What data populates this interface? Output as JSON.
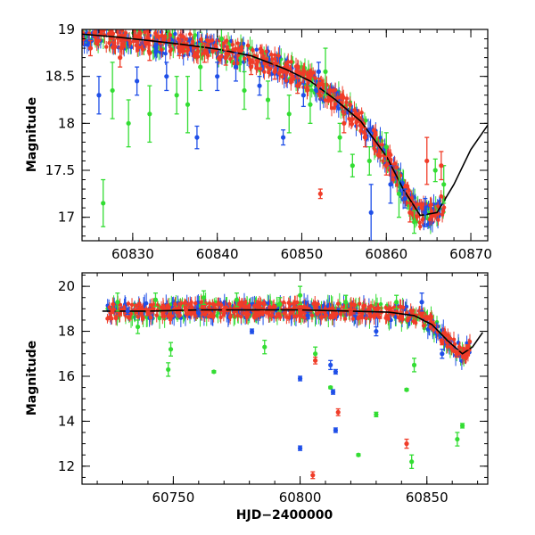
{
  "chart_data": [
    {
      "type": "scatter",
      "panel": "top",
      "title": "",
      "xlabel": "",
      "ylabel": "Magnitude",
      "xlim": [
        60824,
        60872
      ],
      "ylim": [
        19.0,
        16.75
      ],
      "y_inverted": true,
      "grid": false,
      "xticks": [
        60830,
        60840,
        60850,
        60860,
        60870
      ],
      "xtick_labels": [
        "60830",
        "60840",
        "60850",
        "60860",
        "60870"
      ],
      "yticks": [
        17,
        17.5,
        18,
        18.5,
        19
      ],
      "ytick_labels": [
        "17",
        "17.5",
        "18",
        "18.5",
        "19"
      ],
      "colors": {
        "green": "#33dd33",
        "blue": "#1f4fe8",
        "red": "#f03c28",
        "model": "#000000"
      },
      "model_curve": {
        "x": [
          60824,
          60828,
          60832,
          60836,
          60840,
          60844,
          60848,
          60851,
          60854,
          60857,
          60860,
          60862,
          60864,
          60866,
          60868,
          60870,
          60872
        ],
        "y": [
          18.95,
          18.92,
          18.88,
          18.84,
          18.79,
          18.72,
          18.58,
          18.45,
          18.25,
          18.02,
          17.65,
          17.3,
          17.02,
          17.05,
          17.35,
          17.72,
          17.98
        ]
      },
      "series": [
        {
          "color": "green",
          "points": [
            [
              60826.5,
              17.15,
              0.25
            ],
            [
              60827.6,
              18.35,
              0.3
            ],
            [
              60829.5,
              18.0,
              0.25
            ],
            [
              60832.0,
              18.1,
              0.3
            ],
            [
              60835.2,
              18.3,
              0.2
            ],
            [
              60836.5,
              18.2,
              0.3
            ],
            [
              60838.0,
              18.6,
              0.25
            ],
            [
              60840.5,
              18.9,
              0.15
            ],
            [
              60843.2,
              18.35,
              0.2
            ],
            [
              60846.0,
              18.25,
              0.2
            ],
            [
              60848.5,
              18.1,
              0.2
            ],
            [
              60851.0,
              18.2,
              0.2
            ],
            [
              60852.8,
              18.55,
              0.25
            ],
            [
              60854.5,
              17.85,
              0.15
            ],
            [
              60856.0,
              17.55,
              0.12
            ],
            [
              60858.0,
              17.6,
              0.15
            ],
            [
              60860.0,
              17.75,
              0.15
            ],
            [
              60861.5,
              17.25,
              0.25
            ],
            [
              60863.3,
              16.95,
              0.12
            ],
            [
              60865.8,
              17.5,
              0.12
            ],
            [
              60866.8,
              17.35,
              0.2
            ]
          ]
        },
        {
          "color": "blue",
          "points": [
            [
              60826.0,
              18.3,
              0.2
            ],
            [
              60830.5,
              18.45,
              0.15
            ],
            [
              60834.0,
              18.5,
              0.15
            ],
            [
              60837.6,
              17.85,
              0.12
            ],
            [
              60840.0,
              18.5,
              0.15
            ],
            [
              60842.2,
              18.6,
              0.15
            ],
            [
              60845.0,
              18.4,
              0.1
            ],
            [
              60847.8,
              17.85,
              0.08
            ],
            [
              60850.2,
              18.3,
              0.12
            ],
            [
              60852.0,
              18.55,
              0.1
            ],
            [
              60858.2,
              17.05,
              0.3
            ],
            [
              60860.5,
              17.35,
              0.2
            ],
            [
              60862.2,
              17.2,
              0.1
            ],
            [
              60864.6,
              17.05,
              0.15
            ]
          ]
        },
        {
          "color": "red",
          "points": [
            [
              60825.0,
              18.8,
              0.08
            ],
            [
              60828.5,
              18.7,
              0.1
            ],
            [
              60832.0,
              18.75,
              0.08
            ],
            [
              60835.5,
              18.8,
              0.08
            ],
            [
              60838.5,
              18.75,
              0.1
            ],
            [
              60841.0,
              18.7,
              0.08
            ],
            [
              60844.0,
              18.6,
              0.08
            ],
            [
              60846.8,
              18.55,
              0.08
            ],
            [
              60849.5,
              18.4,
              0.08
            ],
            [
              60852.0,
              18.4,
              0.08
            ],
            [
              60852.2,
              17.25,
              0.05
            ],
            [
              60855.0,
              18.0,
              0.1
            ],
            [
              60857.5,
              17.85,
              0.1
            ],
            [
              60860.0,
              17.55,
              0.1
            ],
            [
              60862.8,
              17.05,
              0.1
            ],
            [
              60864.8,
              17.6,
              0.25
            ],
            [
              60866.5,
              17.55,
              0.15
            ]
          ]
        }
      ]
    },
    {
      "type": "scatter",
      "panel": "bottom",
      "title": "",
      "xlabel": "HJD−2400000",
      "ylabel": "Magnitude",
      "xlim": [
        60714,
        60874
      ],
      "ylim": [
        20.6,
        11.2
      ],
      "y_inverted": true,
      "grid": false,
      "xticks": [
        60750,
        60800,
        60850
      ],
      "xtick_labels": [
        "60750",
        "60800",
        "60850"
      ],
      "yticks": [
        12,
        14,
        16,
        18,
        20
      ],
      "ytick_labels": [
        "12",
        "14",
        "16",
        "18",
        "20"
      ],
      "colors": {
        "green": "#33dd33",
        "blue": "#1f4fe8",
        "red": "#f03c28",
        "model": "#000000"
      },
      "model_curve": {
        "x": [
          60722,
          60740,
          60760,
          60780,
          60800,
          60820,
          60835,
          60845,
          60852,
          60858,
          60864,
          60868,
          60872
        ],
        "y": [
          18.9,
          18.9,
          18.95,
          18.95,
          18.95,
          18.9,
          18.85,
          18.7,
          18.3,
          17.6,
          17.0,
          17.3,
          17.95
        ]
      },
      "series": [
        {
          "color": "green",
          "points": [
            [
              60728,
              19.3,
              0.4
            ],
            [
              60736,
              18.2,
              0.3
            ],
            [
              60743,
              19.4,
              0.3
            ],
            [
              60748,
              16.3,
              0.3
            ],
            [
              60749,
              17.2,
              0.3
            ],
            [
              60762,
              19.5,
              0.3
            ],
            [
              60766,
              16.2,
              0.05
            ],
            [
              60775,
              19.4,
              0.3
            ],
            [
              60786,
              17.3,
              0.3
            ],
            [
              60792,
              19.2,
              0.3
            ],
            [
              60800,
              19.6,
              0.4
            ],
            [
              60806,
              17.0,
              0.3
            ],
            [
              60812,
              15.5,
              0.05
            ],
            [
              60818,
              19.3,
              0.3
            ],
            [
              60823,
              12.5,
              0.05
            ],
            [
              60830,
              14.3,
              0.1
            ],
            [
              60838,
              19.3,
              0.3
            ],
            [
              60842,
              15.4,
              0.05
            ],
            [
              60844,
              12.2,
              0.3
            ],
            [
              60845,
              16.5,
              0.3
            ],
            [
              60862,
              13.2,
              0.3
            ],
            [
              60864,
              13.8,
              0.1
            ]
          ]
        },
        {
          "color": "blue",
          "points": [
            [
              60732,
              18.9,
              0.15
            ],
            [
              60760,
              18.8,
              0.15
            ],
            [
              60781,
              18.0,
              0.1
            ],
            [
              60800,
              15.9,
              0.1
            ],
            [
              60800,
              12.8,
              0.1
            ],
            [
              60803,
              18.7,
              0.15
            ],
            [
              60812,
              16.5,
              0.2
            ],
            [
              60813,
              15.3,
              0.1
            ],
            [
              60814,
              13.6,
              0.1
            ],
            [
              60814,
              16.2,
              0.1
            ],
            [
              60830,
              18.0,
              0.2
            ],
            [
              60848,
              19.3,
              0.4
            ],
            [
              60856,
              17.0,
              0.2
            ]
          ]
        },
        {
          "color": "red",
          "points": [
            [
              60726,
              18.9,
              0.1
            ],
            [
              60740,
              18.8,
              0.1
            ],
            [
              60755,
              19.0,
              0.1
            ],
            [
              60770,
              18.9,
              0.1
            ],
            [
              60785,
              18.8,
              0.1
            ],
            [
              60800,
              18.85,
              0.1
            ],
            [
              60805,
              11.6,
              0.15
            ],
            [
              60806,
              16.7,
              0.15
            ],
            [
              60815,
              14.4,
              0.15
            ],
            [
              60820,
              18.8,
              0.1
            ],
            [
              60842,
              13.0,
              0.2
            ],
            [
              60840,
              18.6,
              0.1
            ],
            [
              60850,
              18.6,
              0.1
            ],
            [
              60856,
              17.5,
              0.1
            ],
            [
              60862,
              17.0,
              0.15
            ],
            [
              60866,
              17.3,
              0.1
            ]
          ]
        }
      ]
    }
  ]
}
